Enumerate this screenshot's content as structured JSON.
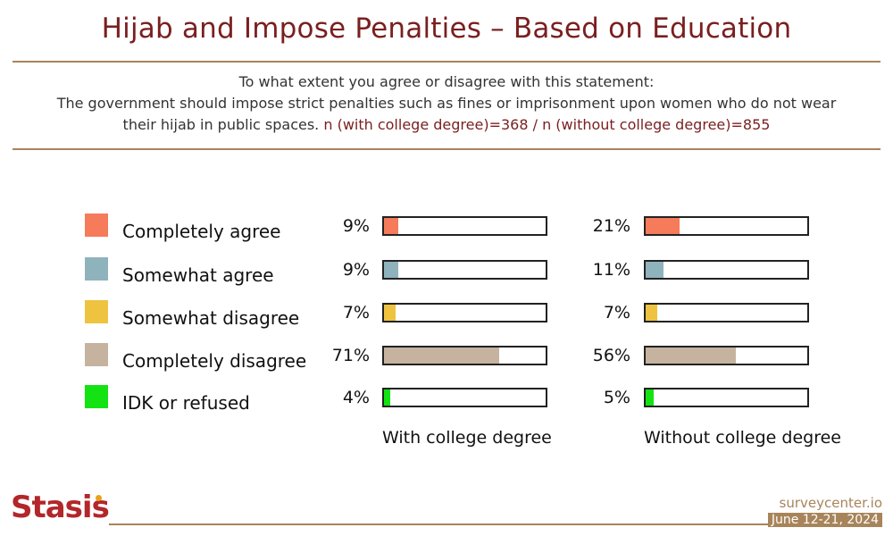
{
  "title": "Hijab and Impose Penalties – Based on Education",
  "subtitle_line1": "To what extent you agree or disagree with this statement:",
  "subtitle_line2": "The government should impose strict penalties such as fines or imprisonment upon women who do not wear",
  "subtitle_line3": "their hijab in public spaces.",
  "sample_note": "n (with college degree)=368 / n (without college degree)=855",
  "chart_data": {
    "type": "bar",
    "orientation": "horizontal",
    "categories": [
      "Completely agree",
      "Somewhat agree",
      "Somewhat disagree",
      "Completely disagree",
      "IDK or refused"
    ],
    "colors": [
      "#f57b5b",
      "#8fb3bd",
      "#eec33f",
      "#c5b3a0",
      "#13e313"
    ],
    "series": [
      {
        "name": "With college degree",
        "values": [
          9,
          9,
          7,
          71,
          4
        ],
        "labels": [
          "9%",
          "9%",
          "7%",
          "71%",
          "4%"
        ]
      },
      {
        "name": "Without college degree",
        "values": [
          21,
          11,
          7,
          56,
          5
        ],
        "labels": [
          "21%",
          "11%",
          "7%",
          "56%",
          "5%"
        ]
      }
    ],
    "xlim": [
      0,
      100
    ],
    "legend_position": "left"
  },
  "footer": {
    "logo": "Stasis",
    "site": "surveycenter.io",
    "date": "June 12-21, 2024"
  }
}
